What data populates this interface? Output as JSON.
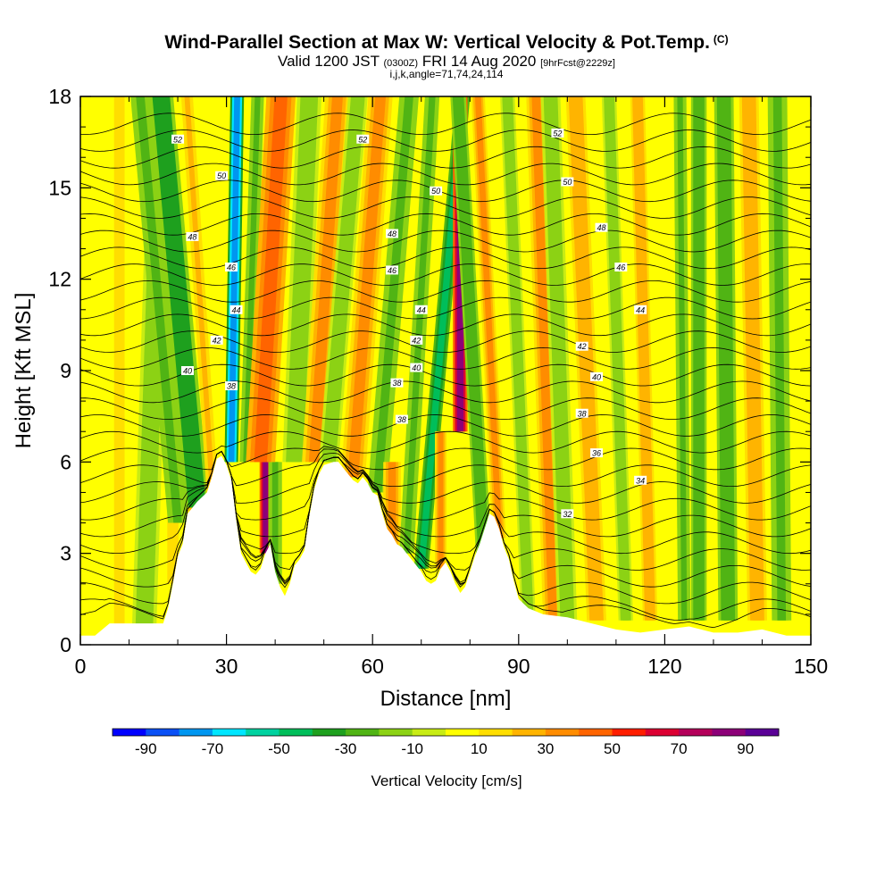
{
  "title": {
    "main": "Wind-Parallel Section at Max W: Vertical Velocity & Pot.Temp.",
    "copyright": "(C)",
    "valid_prefix": "Valid 1200 JST",
    "valid_utc": "(0300Z)",
    "valid_date": "FRI 14 Aug 2020",
    "forecast": "[9hrFcst@2229z]",
    "indices": "i,j,k,angle=71,74,24,114"
  },
  "colors": {
    "background": "#ffffff",
    "terrain": "#ffffff",
    "contour": "#000000"
  },
  "chart_data": {
    "type": "heatmap",
    "xlabel": "Distance [nm]",
    "ylabel": "Height [Kft MSL]",
    "xlim": [
      0,
      150
    ],
    "ylim": [
      0,
      18
    ],
    "x_ticks": [
      0,
      30,
      60,
      90,
      120,
      150
    ],
    "x_tick_labels": [
      "0",
      "30",
      "60",
      "90",
      "120",
      "150"
    ],
    "y_ticks": [
      0,
      3,
      6,
      9,
      12,
      15,
      18
    ],
    "y_tick_labels": [
      "0",
      "3",
      "6",
      "9",
      "12",
      "15",
      "18"
    ],
    "colorbar": {
      "title": "Vertical Velocity [cm/s]",
      "tick_labels": [
        "-90",
        "-70",
        "-50",
        "-30",
        "-10",
        "10",
        "30",
        "50",
        "70",
        "90"
      ],
      "tick_values": [
        -90,
        -70,
        -50,
        -30,
        -10,
        10,
        30,
        50,
        70,
        90
      ],
      "range": [
        -100,
        100
      ],
      "colors": [
        "#0000ff",
        "#0a50f5",
        "#0096f0",
        "#00e6ff",
        "#00d2a0",
        "#00be5a",
        "#1ea01e",
        "#50b414",
        "#8cd214",
        "#c8ec14",
        "#ffff00",
        "#ffde00",
        "#ffb400",
        "#ff8c00",
        "#ff6400",
        "#ff1e00",
        "#dc0032",
        "#b4005a",
        "#8c0078",
        "#5a0096"
      ]
    },
    "terrain_profile": {
      "x": [
        0,
        3,
        6,
        10,
        14,
        17,
        18,
        19,
        20,
        21,
        22,
        24,
        26,
        27,
        28,
        29,
        30,
        31,
        32,
        33,
        34,
        35,
        36,
        37,
        38,
        39,
        40,
        41,
        42,
        43,
        44,
        45,
        46,
        47,
        48,
        49,
        50,
        52,
        53,
        54,
        55,
        56,
        57,
        58,
        59,
        60,
        61,
        62,
        63,
        64,
        65,
        66,
        67,
        68,
        69,
        70,
        71,
        72,
        73,
        74,
        75,
        76,
        77,
        78,
        79,
        80,
        81,
        82,
        83,
        84,
        85,
        86,
        87,
        88,
        89,
        90,
        92,
        95,
        100,
        105,
        110,
        115,
        120,
        125,
        130,
        135,
        140,
        145,
        150
      ],
      "y": [
        0.3,
        0.3,
        0.7,
        0.7,
        0.7,
        0.7,
        1.2,
        2.0,
        2.9,
        3.3,
        4.3,
        4.7,
        5.0,
        5.5,
        6.1,
        6.2,
        5.9,
        5.4,
        4.1,
        3.0,
        2.7,
        2.4,
        2.3,
        2.5,
        3.0,
        3.3,
        2.4,
        1.9,
        1.6,
        2.0,
        2.6,
        2.8,
        3.1,
        4.2,
        5.1,
        5.6,
        5.9,
        6.0,
        6.0,
        5.8,
        5.6,
        5.4,
        5.3,
        5.5,
        5.3,
        5.0,
        4.9,
        4.3,
        3.8,
        3.6,
        3.3,
        3.2,
        3.0,
        2.8,
        2.6,
        2.4,
        2.1,
        2.0,
        2.1,
        2.5,
        2.7,
        2.4,
        2.0,
        1.7,
        1.9,
        2.4,
        2.9,
        3.3,
        3.8,
        4.3,
        4.2,
        3.8,
        3.2,
        2.8,
        2.1,
        1.5,
        1.2,
        1.0,
        0.9,
        0.7,
        0.5,
        0.4,
        0.5,
        0.6,
        0.4,
        0.4,
        0.5,
        0.3,
        0.3
      ]
    },
    "bands": [
      {
        "x": 8,
        "w": 1.5,
        "y0": 0,
        "y1": 18,
        "tilt": 0
      },
      {
        "x": 13,
        "w": 2.5,
        "y0": 0,
        "y1": 18,
        "tilt": 0.2
      },
      {
        "x": 19,
        "w": 1.6,
        "y0": 2,
        "y1": 6,
        "tilt": 0
      },
      {
        "x": 20,
        "w": 2.0,
        "y0": 4,
        "y1": 18,
        "tilt": -0.55,
        "v": -25
      },
      {
        "x": 24,
        "w": 1.3,
        "y0": 3,
        "y1": 18,
        "tilt": -0.45,
        "v": 25
      },
      {
        "x": 24,
        "w": 2.5,
        "y0": 4.5,
        "y1": 18,
        "tilt": -0.55,
        "v": -40
      },
      {
        "x": 27.5,
        "w": 1.2,
        "y0": 4,
        "y1": 18,
        "tilt": -0.4,
        "v": 20
      },
      {
        "x": 31,
        "w": 1.4,
        "y0": 6,
        "y1": 18,
        "tilt": 0.1,
        "v": -80
      },
      {
        "x": 34,
        "w": 1.3,
        "y0": 6,
        "y1": 18,
        "tilt": 0.2,
        "v": -25
      },
      {
        "x": 38,
        "w": 1.2,
        "y0": 3,
        "y1": 6.5,
        "tilt": 0,
        "v": 80
      },
      {
        "x": 40,
        "w": 1.4,
        "y0": 2,
        "y1": 6,
        "tilt": 0,
        "v": -25
      },
      {
        "x": 37,
        "w": 3.0,
        "y0": 6,
        "y1": 18,
        "tilt": 0.35,
        "v": 40
      },
      {
        "x": 44,
        "w": 2.5,
        "y0": 6,
        "y1": 18,
        "tilt": 0.25,
        "v": -20
      },
      {
        "x": 48,
        "w": 2.5,
        "y0": 6,
        "y1": 18,
        "tilt": 0.4,
        "v": 30
      },
      {
        "x": 51,
        "w": 2.0,
        "y0": 6,
        "y1": 18,
        "tilt": 0.5,
        "v": -20
      },
      {
        "x": 56,
        "w": 2.5,
        "y0": 5.5,
        "y1": 18,
        "tilt": 0.45,
        "v": 35
      },
      {
        "x": 61,
        "w": 2.0,
        "y0": 5,
        "y1": 18,
        "tilt": 0.5,
        "v": -25
      },
      {
        "x": 64,
        "w": 1.8,
        "y0": 3,
        "y1": 6,
        "tilt": 0,
        "v": 35
      },
      {
        "x": 67,
        "w": 1.5,
        "y0": 3,
        "y1": 18,
        "tilt": 0.35,
        "v": -25
      },
      {
        "x": 70,
        "w": 1.5,
        "y0": 2.5,
        "y1": 18,
        "tilt": 0.55,
        "v": -45
      },
      {
        "x": 74,
        "w": 1.2,
        "y0": 2.5,
        "y1": 7,
        "tilt": 0,
        "v": 35
      },
      {
        "x": 78,
        "w": 1.5,
        "y0": 7,
        "y1": 18,
        "tilt": 0.0,
        "v": 80
      },
      {
        "x": 83,
        "w": 1.6,
        "y0": 2.5,
        "y1": 18,
        "tilt": -0.35,
        "v": -30
      },
      {
        "x": 86,
        "w": 1.4,
        "y0": 3.5,
        "y1": 18,
        "tilt": -0.3,
        "v": 30
      },
      {
        "x": 92,
        "w": 1.5,
        "y0": 0.8,
        "y1": 18,
        "tilt": -0.25,
        "v": -20
      },
      {
        "x": 97,
        "w": 2.0,
        "y0": 0.8,
        "y1": 18,
        "tilt": -0.2,
        "v": 30
      },
      {
        "x": 100,
        "w": 2.0,
        "y0": 0.8,
        "y1": 18,
        "tilt": -0.2,
        "v": -20
      },
      {
        "x": 106,
        "w": 2.0,
        "y0": 0.8,
        "y1": 18,
        "tilt": -0.25,
        "v": 25
      },
      {
        "x": 112,
        "w": 1.5,
        "y0": 0.8,
        "y1": 18,
        "tilt": -0.2,
        "v": -20
      },
      {
        "x": 117,
        "w": 1.5,
        "y0": 0.8,
        "y1": 18,
        "tilt": -0.15,
        "v": 25
      },
      {
        "x": 124,
        "w": 1.3,
        "y0": 0.8,
        "y1": 18,
        "tilt": -0.05,
        "v": -25
      },
      {
        "x": 127,
        "w": 1.6,
        "y0": 0.8,
        "y1": 18,
        "tilt": 0.0,
        "v": -30
      },
      {
        "x": 133,
        "w": 2.0,
        "y0": 0.8,
        "y1": 18,
        "tilt": -0.05,
        "v": -30
      },
      {
        "x": 139,
        "w": 2.0,
        "y0": 0.8,
        "y1": 18,
        "tilt": -0.1,
        "v": 25
      },
      {
        "x": 144,
        "w": 2.0,
        "y0": 0.8,
        "y1": 18,
        "tilt": -0.05,
        "v": -25
      }
    ],
    "isentropes": [
      {
        "label": "32",
        "h": 5.2,
        "lx": 100,
        "ly": 4.3
      },
      {
        "label": "34",
        "h": 6.2,
        "lx": 115,
        "ly": 5.4
      },
      {
        "label": "36",
        "h": 7.2,
        "lx": 106,
        "ly": 6.3
      },
      {
        "label": "38",
        "h": 7.9,
        "lx": 66,
        "ly": 7.4
      },
      {
        "label": "38",
        "h": 7.9,
        "lx": 103,
        "ly": 7.6
      },
      {
        "label": "38",
        "h": 7.9,
        "lx": 31,
        "ly": 8.5
      },
      {
        "label": "38",
        "h": 7.9,
        "lx": 65,
        "ly": 8.6
      },
      {
        "label": "40",
        "h": 8.8,
        "lx": 22,
        "ly": 9.0
      },
      {
        "label": "40",
        "h": 8.8,
        "lx": 69,
        "ly": 9.1
      },
      {
        "label": "40",
        "h": 8.8,
        "lx": 106,
        "ly": 8.8
      },
      {
        "label": "42",
        "h": 9.8,
        "lx": 28,
        "ly": 10.0
      },
      {
        "label": "42",
        "h": 9.8,
        "lx": 69,
        "ly": 10.0
      },
      {
        "label": "42",
        "h": 9.8,
        "lx": 103,
        "ly": 9.8
      },
      {
        "label": "44",
        "h": 11.0,
        "lx": 32,
        "ly": 11.0
      },
      {
        "label": "44",
        "h": 11.0,
        "lx": 70,
        "ly": 11.0
      },
      {
        "label": "44",
        "h": 11.0,
        "lx": 115,
        "ly": 11.0
      },
      {
        "label": "46",
        "h": 12.4,
        "lx": 31,
        "ly": 12.4
      },
      {
        "label": "46",
        "h": 12.4,
        "lx": 64,
        "ly": 12.3
      },
      {
        "label": "46",
        "h": 12.4,
        "lx": 111,
        "ly": 12.4
      },
      {
        "label": "48",
        "h": 13.7,
        "lx": 23,
        "ly": 13.4
      },
      {
        "label": "48",
        "h": 13.7,
        "lx": 64,
        "ly": 13.5
      },
      {
        "label": "48",
        "h": 13.7,
        "lx": 107,
        "ly": 13.7
      },
      {
        "label": "50",
        "h": 15.2,
        "lx": 29,
        "ly": 15.4
      },
      {
        "label": "50",
        "h": 15.2,
        "lx": 73,
        "ly": 14.9
      },
      {
        "label": "50",
        "h": 15.2,
        "lx": 100,
        "ly": 15.2
      },
      {
        "label": "52",
        "h": 16.6,
        "lx": 20,
        "ly": 16.6
      },
      {
        "label": "52",
        "h": 16.6,
        "lx": 58,
        "ly": 16.6
      },
      {
        "label": "52",
        "h": 16.6,
        "lx": 98,
        "ly": 16.8
      }
    ]
  }
}
